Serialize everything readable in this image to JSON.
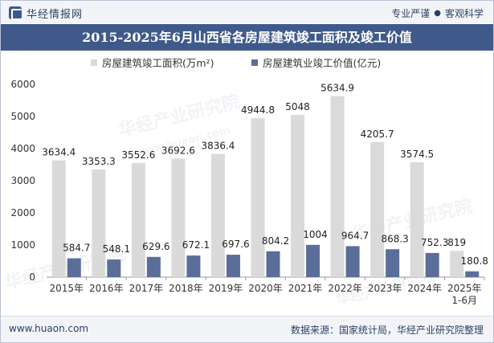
{
  "header": {
    "brand": "华经情报网",
    "slogan_left": "专业严谨",
    "slogan_sep": "●",
    "slogan_right": "客观科学"
  },
  "footer": {
    "website": "www.huaon.com",
    "source": "数据来源：国家统计局，华经产业研究院整理"
  },
  "watermarks": [
    "华经产业研究院",
    "www.huaon.com"
  ],
  "colors": {
    "area_bar": "#dadada",
    "value_bar": "#5b6e9a",
    "title_bg": "#3f5a8a"
  },
  "chart_data": {
    "type": "bar",
    "title": "2015-2025年6月山西省各房屋建筑竣工面积及竣工价值",
    "categories": [
      "2015年",
      "2016年",
      "2017年",
      "2018年",
      "2019年",
      "2020年",
      "2021年",
      "2022年",
      "2023年",
      "2024年",
      "2025年\n1-6月"
    ],
    "series": [
      {
        "name": "房屋建筑竣工面积(万m²)",
        "values": [
          3634.4,
          3353.3,
          3552.6,
          3692.6,
          3836.4,
          4944.8,
          5048,
          5634.9,
          4205.7,
          3574.5,
          819
        ],
        "labels": [
          "3634.4",
          "3353.3",
          "3552.6",
          "3692.6",
          "3836.4",
          "4944.8",
          "5048",
          "5634.9",
          "4205.7",
          "3574.5",
          "819"
        ]
      },
      {
        "name": "房屋建筑业竣工价值(亿元)",
        "values": [
          584.7,
          548.1,
          629.6,
          672.1,
          697.6,
          804.2,
          1004,
          964.7,
          868.3,
          752.3,
          180.8
        ],
        "labels": [
          "584.7",
          "548.1",
          "629.6",
          "672.1",
          "697.6",
          "804.2",
          "1004",
          "964.7",
          "868.3",
          "752.3",
          "180.8"
        ]
      }
    ],
    "yticks": [
      "0",
      "1000",
      "2000",
      "3000",
      "4000",
      "5000",
      "6000"
    ],
    "ylim": [
      0,
      6000
    ],
    "xlabel": "",
    "ylabel": "",
    "legend": "top-center",
    "grid": false
  }
}
